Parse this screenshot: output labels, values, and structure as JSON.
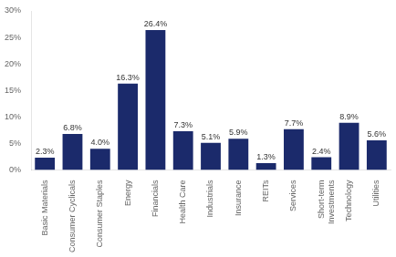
{
  "chart_data": {
    "type": "bar",
    "categories": [
      "Basic Materials",
      "Consumer Cyclicals",
      "Consumer Staples",
      "Energy",
      "Financials",
      "Health Care",
      "Industrials",
      "Insurance",
      "REITs",
      "Services",
      "Short-term\nInvestments",
      "Technology",
      "Utilities"
    ],
    "values": [
      2.3,
      6.8,
      4.0,
      16.3,
      26.4,
      7.3,
      5.1,
      5.9,
      1.3,
      7.7,
      2.4,
      8.9,
      5.6
    ],
    "value_labels": [
      "2.3%",
      "6.8%",
      "4.0%",
      "16.3%",
      "26.4%",
      "7.3%",
      "5.1%",
      "5.9%",
      "1.3%",
      "7.7%",
      "2.4%",
      "8.9%",
      "5.6%"
    ],
    "data_labels": true,
    "color": "#1b2a6b",
    "ylim": [
      0,
      30
    ],
    "yticks": [
      {
        "value": 0,
        "label": "0%"
      },
      {
        "value": 5,
        "label": "5%"
      },
      {
        "value": 10,
        "label": "10%"
      },
      {
        "value": 15,
        "label": "15%"
      },
      {
        "value": 20,
        "label": "20%"
      },
      {
        "value": 25,
        "label": "25%"
      },
      {
        "value": 30,
        "label": "30%"
      }
    ],
    "grid": false
  }
}
